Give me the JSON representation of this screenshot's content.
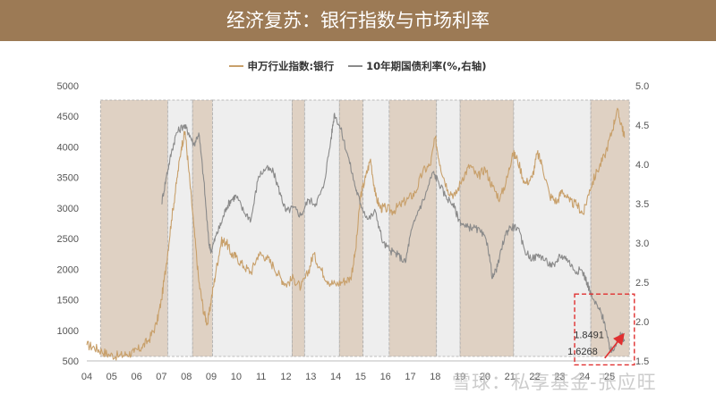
{
  "header": {
    "title": "经济复苏：银行指数与市场利率"
  },
  "watermark": "雪球：私享基金-张应旺",
  "colors": {
    "banner": "#9c7a55",
    "bank_index": "#c8a06b",
    "bond_yield": "#8a8a8a",
    "shade_brown": "#dfd1c3",
    "shade_grey": "#eeeeee",
    "annotation_box": "#e03030",
    "annotation_arrow": "#e03030"
  },
  "chart_data": {
    "type": "line",
    "legend_position": "top-center",
    "x_ticks": [
      "04",
      "05",
      "06",
      "07",
      "08",
      "09",
      "10",
      "11",
      "12",
      "13",
      "14",
      "15",
      "16",
      "17",
      "18",
      "19",
      "20",
      "21",
      "22",
      "23",
      "24",
      "25"
    ],
    "y_left": {
      "ticks": [
        500,
        1000,
        1500,
        2000,
        2500,
        3000,
        3500,
        4000,
        4500,
        5000
      ],
      "range": [
        500,
        5000
      ]
    },
    "y_right": {
      "ticks": [
        "1.5",
        "2.0",
        "2.5",
        "3.0",
        "3.5",
        "4.0",
        "4.5",
        "5.0"
      ],
      "range": [
        1.5,
        5.0
      ]
    },
    "series": [
      {
        "name": "申万行业指数:银行",
        "axis": "left",
        "points": [
          [
            2004.0,
            760
          ],
          [
            2004.3,
            720
          ],
          [
            2004.6,
            660
          ],
          [
            2004.9,
            600
          ],
          [
            2005.3,
            580
          ],
          [
            2005.6,
            610
          ],
          [
            2005.9,
            640
          ],
          [
            2006.2,
            720
          ],
          [
            2006.5,
            850
          ],
          [
            2006.8,
            1100
          ],
          [
            2007.0,
            1500
          ],
          [
            2007.2,
            2100
          ],
          [
            2007.4,
            2800
          ],
          [
            2007.6,
            3400
          ],
          [
            2007.8,
            4000
          ],
          [
            2007.95,
            4250
          ],
          [
            2008.1,
            3600
          ],
          [
            2008.3,
            2700
          ],
          [
            2008.5,
            1800
          ],
          [
            2008.7,
            1300
          ],
          [
            2008.85,
            1100
          ],
          [
            2009.0,
            1500
          ],
          [
            2009.2,
            2000
          ],
          [
            2009.4,
            2450
          ],
          [
            2009.6,
            2450
          ],
          [
            2009.8,
            2250
          ],
          [
            2010.0,
            2200
          ],
          [
            2010.3,
            2050
          ],
          [
            2010.6,
            1950
          ],
          [
            2010.9,
            2250
          ],
          [
            2011.2,
            2200
          ],
          [
            2011.5,
            2050
          ],
          [
            2011.8,
            1850
          ],
          [
            2012.0,
            1750
          ],
          [
            2012.3,
            1850
          ],
          [
            2012.6,
            1700
          ],
          [
            2012.9,
            1950
          ],
          [
            2013.1,
            2250
          ],
          [
            2013.4,
            2000
          ],
          [
            2013.7,
            1800
          ],
          [
            2014.0,
            1750
          ],
          [
            2014.3,
            1800
          ],
          [
            2014.6,
            1850
          ],
          [
            2014.8,
            2300
          ],
          [
            2015.0,
            3200
          ],
          [
            2015.2,
            3500
          ],
          [
            2015.4,
            3800
          ],
          [
            2015.6,
            3200
          ],
          [
            2015.8,
            3000
          ],
          [
            2016.0,
            3000
          ],
          [
            2016.3,
            2950
          ],
          [
            2016.6,
            3050
          ],
          [
            2016.9,
            3150
          ],
          [
            2017.2,
            3250
          ],
          [
            2017.5,
            3600
          ],
          [
            2017.8,
            3700
          ],
          [
            2018.0,
            4150
          ],
          [
            2018.2,
            3700
          ],
          [
            2018.5,
            3300
          ],
          [
            2018.8,
            3200
          ],
          [
            2019.1,
            3500
          ],
          [
            2019.4,
            3700
          ],
          [
            2019.7,
            3500
          ],
          [
            2020.0,
            3650
          ],
          [
            2020.3,
            3350
          ],
          [
            2020.6,
            3150
          ],
          [
            2020.9,
            3500
          ],
          [
            2021.1,
            3900
          ],
          [
            2021.3,
            3800
          ],
          [
            2021.6,
            3400
          ],
          [
            2021.9,
            3500
          ],
          [
            2022.1,
            3900
          ],
          [
            2022.3,
            3700
          ],
          [
            2022.6,
            3200
          ],
          [
            2022.9,
            3100
          ],
          [
            2023.1,
            3300
          ],
          [
            2023.4,
            3100
          ],
          [
            2023.7,
            3050
          ],
          [
            2023.95,
            2900
          ],
          [
            2024.2,
            3300
          ],
          [
            2024.5,
            3600
          ],
          [
            2024.8,
            3850
          ],
          [
            2025.1,
            4250
          ],
          [
            2025.3,
            4600
          ],
          [
            2025.5,
            4350
          ],
          [
            2025.6,
            4150
          ]
        ]
      },
      {
        "name": "10年期国债利率(%,右轴)",
        "axis": "right",
        "points": [
          [
            2007.0,
            3.5
          ],
          [
            2007.2,
            3.85
          ],
          [
            2007.4,
            4.15
          ],
          [
            2007.6,
            4.4
          ],
          [
            2007.9,
            4.5
          ],
          [
            2008.1,
            4.4
          ],
          [
            2008.3,
            4.25
          ],
          [
            2008.5,
            4.4
          ],
          [
            2008.7,
            3.8
          ],
          [
            2008.9,
            3.0
          ],
          [
            2009.0,
            2.9
          ],
          [
            2009.2,
            3.1
          ],
          [
            2009.4,
            3.25
          ],
          [
            2009.6,
            3.45
          ],
          [
            2009.8,
            3.55
          ],
          [
            2010.0,
            3.6
          ],
          [
            2010.3,
            3.4
          ],
          [
            2010.6,
            3.3
          ],
          [
            2010.9,
            3.85
          ],
          [
            2011.2,
            3.95
          ],
          [
            2011.5,
            3.9
          ],
          [
            2011.8,
            3.6
          ],
          [
            2012.0,
            3.4
          ],
          [
            2012.3,
            3.45
          ],
          [
            2012.6,
            3.35
          ],
          [
            2012.9,
            3.55
          ],
          [
            2013.2,
            3.5
          ],
          [
            2013.5,
            3.7
          ],
          [
            2013.8,
            4.3
          ],
          [
            2013.95,
            4.65
          ],
          [
            2014.2,
            4.45
          ],
          [
            2014.5,
            4.1
          ],
          [
            2014.8,
            3.7
          ],
          [
            2015.0,
            3.5
          ],
          [
            2015.3,
            3.3
          ],
          [
            2015.6,
            3.4
          ],
          [
            2015.9,
            3.0
          ],
          [
            2016.2,
            2.9
          ],
          [
            2016.5,
            2.85
          ],
          [
            2016.8,
            2.75
          ],
          [
            2017.0,
            3.1
          ],
          [
            2017.3,
            3.4
          ],
          [
            2017.6,
            3.6
          ],
          [
            2017.9,
            3.9
          ],
          [
            2018.1,
            3.8
          ],
          [
            2018.4,
            3.6
          ],
          [
            2018.7,
            3.5
          ],
          [
            2018.95,
            3.3
          ],
          [
            2019.2,
            3.2
          ],
          [
            2019.5,
            3.2
          ],
          [
            2019.8,
            3.15
          ],
          [
            2020.1,
            3.0
          ],
          [
            2020.3,
            2.55
          ],
          [
            2020.5,
            2.7
          ],
          [
            2020.8,
            3.1
          ],
          [
            2021.0,
            3.2
          ],
          [
            2021.3,
            3.2
          ],
          [
            2021.6,
            2.9
          ],
          [
            2021.9,
            2.8
          ],
          [
            2022.2,
            2.85
          ],
          [
            2022.5,
            2.75
          ],
          [
            2022.8,
            2.7
          ],
          [
            2023.0,
            2.85
          ],
          [
            2023.3,
            2.8
          ],
          [
            2023.6,
            2.65
          ],
          [
            2023.9,
            2.65
          ],
          [
            2024.1,
            2.5
          ],
          [
            2024.3,
            2.3
          ],
          [
            2024.6,
            2.15
          ],
          [
            2024.8,
            2.0
          ],
          [
            2025.0,
            1.65
          ],
          [
            2025.1,
            1.6268
          ],
          [
            2025.3,
            1.75
          ],
          [
            2025.5,
            1.8491
          ],
          [
            2025.6,
            1.75
          ]
        ]
      }
    ],
    "shaded_periods": [
      {
        "start": 2004.55,
        "end": 2007.25,
        "fill": "brown"
      },
      {
        "start": 2007.25,
        "end": 2008.25,
        "fill": "grey"
      },
      {
        "start": 2008.25,
        "end": 2009.05,
        "fill": "brown"
      },
      {
        "start": 2009.05,
        "end": 2012.25,
        "fill": "grey"
      },
      {
        "start": 2012.25,
        "end": 2012.75,
        "fill": "brown"
      },
      {
        "start": 2012.75,
        "end": 2014.15,
        "fill": "grey"
      },
      {
        "start": 2014.15,
        "end": 2015.1,
        "fill": "brown"
      },
      {
        "start": 2015.1,
        "end": 2016.15,
        "fill": "grey"
      },
      {
        "start": 2016.15,
        "end": 2018.05,
        "fill": "brown"
      },
      {
        "start": 2018.05,
        "end": 2019.0,
        "fill": "grey"
      },
      {
        "start": 2019.0,
        "end": 2021.15,
        "fill": "brown"
      },
      {
        "start": 2021.15,
        "end": 2024.25,
        "fill": "grey"
      },
      {
        "start": 2024.25,
        "end": 2025.8,
        "fill": "brown"
      }
    ],
    "annotations": [
      {
        "text": "1.8491",
        "x": 2025.5,
        "y": 1.8491,
        "axis": "right"
      },
      {
        "text": "1.6268",
        "x": 2025.1,
        "y": 1.6268,
        "axis": "right"
      }
    ],
    "highlight_box": {
      "x_range": [
        2023.6,
        2026.0
      ],
      "y_range": [
        1.45,
        2.35
      ],
      "axis": "right"
    }
  }
}
